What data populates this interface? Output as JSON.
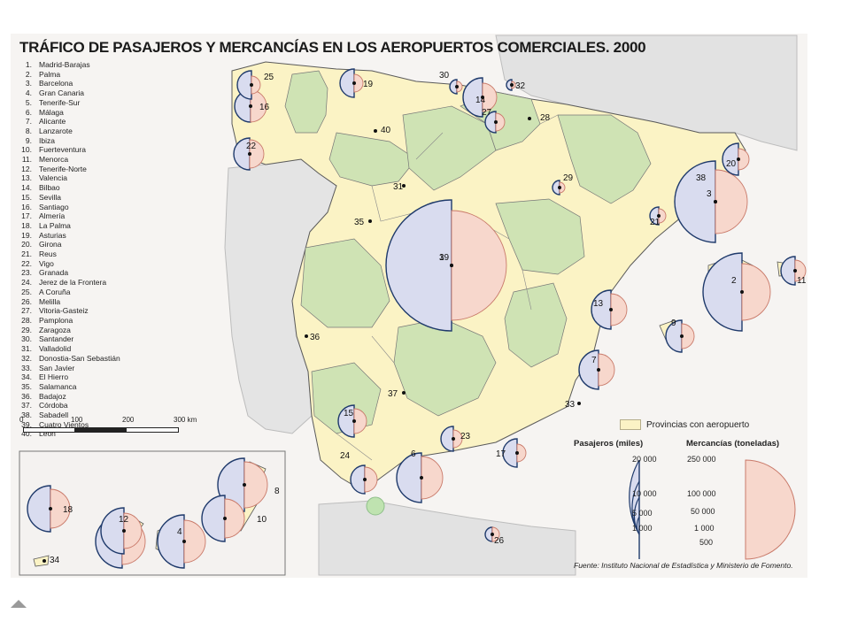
{
  "title": "TRÁFICO DE PASAJEROS Y MERCANCÍAS EN LOS AEROPUERTOS COMERCIALES. 2000",
  "airports": [
    {
      "n": "1.",
      "name": "Madrid-Barajas"
    },
    {
      "n": "2.",
      "name": "Palma"
    },
    {
      "n": "3.",
      "name": "Barcelona"
    },
    {
      "n": "4.",
      "name": "Gran Canaria"
    },
    {
      "n": "5.",
      "name": "Tenerife-Sur"
    },
    {
      "n": "6.",
      "name": "Málaga"
    },
    {
      "n": "7.",
      "name": "Alicante"
    },
    {
      "n": "8.",
      "name": "Lanzarote"
    },
    {
      "n": "9.",
      "name": "Ibiza"
    },
    {
      "n": "10.",
      "name": "Fuerteventura"
    },
    {
      "n": "11.",
      "name": "Menorca"
    },
    {
      "n": "12.",
      "name": "Tenerife-Norte"
    },
    {
      "n": "13.",
      "name": "Valencia"
    },
    {
      "n": "14.",
      "name": "Bilbao"
    },
    {
      "n": "15.",
      "name": "Sevilla"
    },
    {
      "n": "16.",
      "name": "Santiago"
    },
    {
      "n": "17.",
      "name": "Almería"
    },
    {
      "n": "18.",
      "name": "La Palma"
    },
    {
      "n": "19.",
      "name": "Asturias"
    },
    {
      "n": "20.",
      "name": "Girona"
    },
    {
      "n": "21.",
      "name": "Reus"
    },
    {
      "n": "22.",
      "name": "Vigo"
    },
    {
      "n": "23.",
      "name": "Granada"
    },
    {
      "n": "24.",
      "name": "Jerez de la Frontera"
    },
    {
      "n": "25.",
      "name": "A Coruña"
    },
    {
      "n": "26.",
      "name": "Melilla"
    },
    {
      "n": "27.",
      "name": "Vitoria-Gasteiz"
    },
    {
      "n": "28.",
      "name": "Pamplona"
    },
    {
      "n": "29.",
      "name": "Zaragoza"
    },
    {
      "n": "30.",
      "name": "Santander"
    },
    {
      "n": "31.",
      "name": "Valladolid"
    },
    {
      "n": "32.",
      "name": "Donostia-San Sebastián"
    },
    {
      "n": "33.",
      "name": "San Javier"
    },
    {
      "n": "34.",
      "name": "El Hierro"
    },
    {
      "n": "35.",
      "name": "Salamanca"
    },
    {
      "n": "36.",
      "name": "Badajoz"
    },
    {
      "n": "37.",
      "name": "Córdoba"
    },
    {
      "n": "38.",
      "name": "Sabadell"
    },
    {
      "n": "39.",
      "name": "Cuatro Vientos"
    },
    {
      "n": "40.",
      "name": "León"
    }
  ],
  "scale": {
    "ticks": [
      "0",
      "100",
      "200",
      "300 km"
    ]
  },
  "legend": {
    "province_label": "Provincias con aeropuerto",
    "province_color": "#fbf3c5",
    "other_color": "#cfe3b4",
    "passengers_title": "Pasajeros (miles)",
    "passengers_values": [
      "20 000",
      "10 000",
      "5 000",
      "1 000"
    ],
    "passengers_color": "#d9dcef",
    "freight_title": "Mercancías (toneladas)",
    "freight_values": [
      "250 000",
      "100 000",
      "50 000",
      "1 000",
      "500"
    ],
    "freight_color": "#f7d7cc"
  },
  "source": "Fuente: Instituto Nacional de Estadística y Ministerio de Fomento.",
  "markers": [
    {
      "id": "1",
      "label": "1"
    },
    {
      "id": "39",
      "label": "39"
    },
    {
      "id": "2",
      "label": "2"
    },
    {
      "id": "3",
      "label": "3"
    },
    {
      "id": "38",
      "label": "38"
    },
    {
      "id": "4",
      "label": "4"
    },
    {
      "id": "5",
      "label": "5"
    },
    {
      "id": "6",
      "label": "6"
    },
    {
      "id": "7",
      "label": "7"
    },
    {
      "id": "8",
      "label": "8"
    },
    {
      "id": "9",
      "label": "9"
    },
    {
      "id": "10",
      "label": "10"
    },
    {
      "id": "11",
      "label": "11"
    },
    {
      "id": "12",
      "label": "12"
    },
    {
      "id": "13",
      "label": "13"
    },
    {
      "id": "14",
      "label": "14"
    },
    {
      "id": "15",
      "label": "15"
    },
    {
      "id": "16",
      "label": "16"
    },
    {
      "id": "17",
      "label": "17"
    },
    {
      "id": "18",
      "label": "18"
    },
    {
      "id": "19",
      "label": "19"
    },
    {
      "id": "20",
      "label": "20"
    },
    {
      "id": "21",
      "label": "21"
    },
    {
      "id": "22",
      "label": "22"
    },
    {
      "id": "23",
      "label": "23"
    },
    {
      "id": "24",
      "label": "24"
    },
    {
      "id": "25",
      "label": "25"
    },
    {
      "id": "26",
      "label": "26"
    },
    {
      "id": "27",
      "label": "27"
    },
    {
      "id": "28",
      "label": "28"
    },
    {
      "id": "29",
      "label": "29"
    },
    {
      "id": "30",
      "label": "30"
    },
    {
      "id": "31",
      "label": "31"
    },
    {
      "id": "32",
      "label": "32"
    },
    {
      "id": "33",
      "label": "33"
    },
    {
      "id": "34",
      "label": "34"
    },
    {
      "id": "35",
      "label": "35"
    },
    {
      "id": "36",
      "label": "36"
    },
    {
      "id": "37",
      "label": "37"
    },
    {
      "id": "40",
      "label": "40"
    }
  ]
}
